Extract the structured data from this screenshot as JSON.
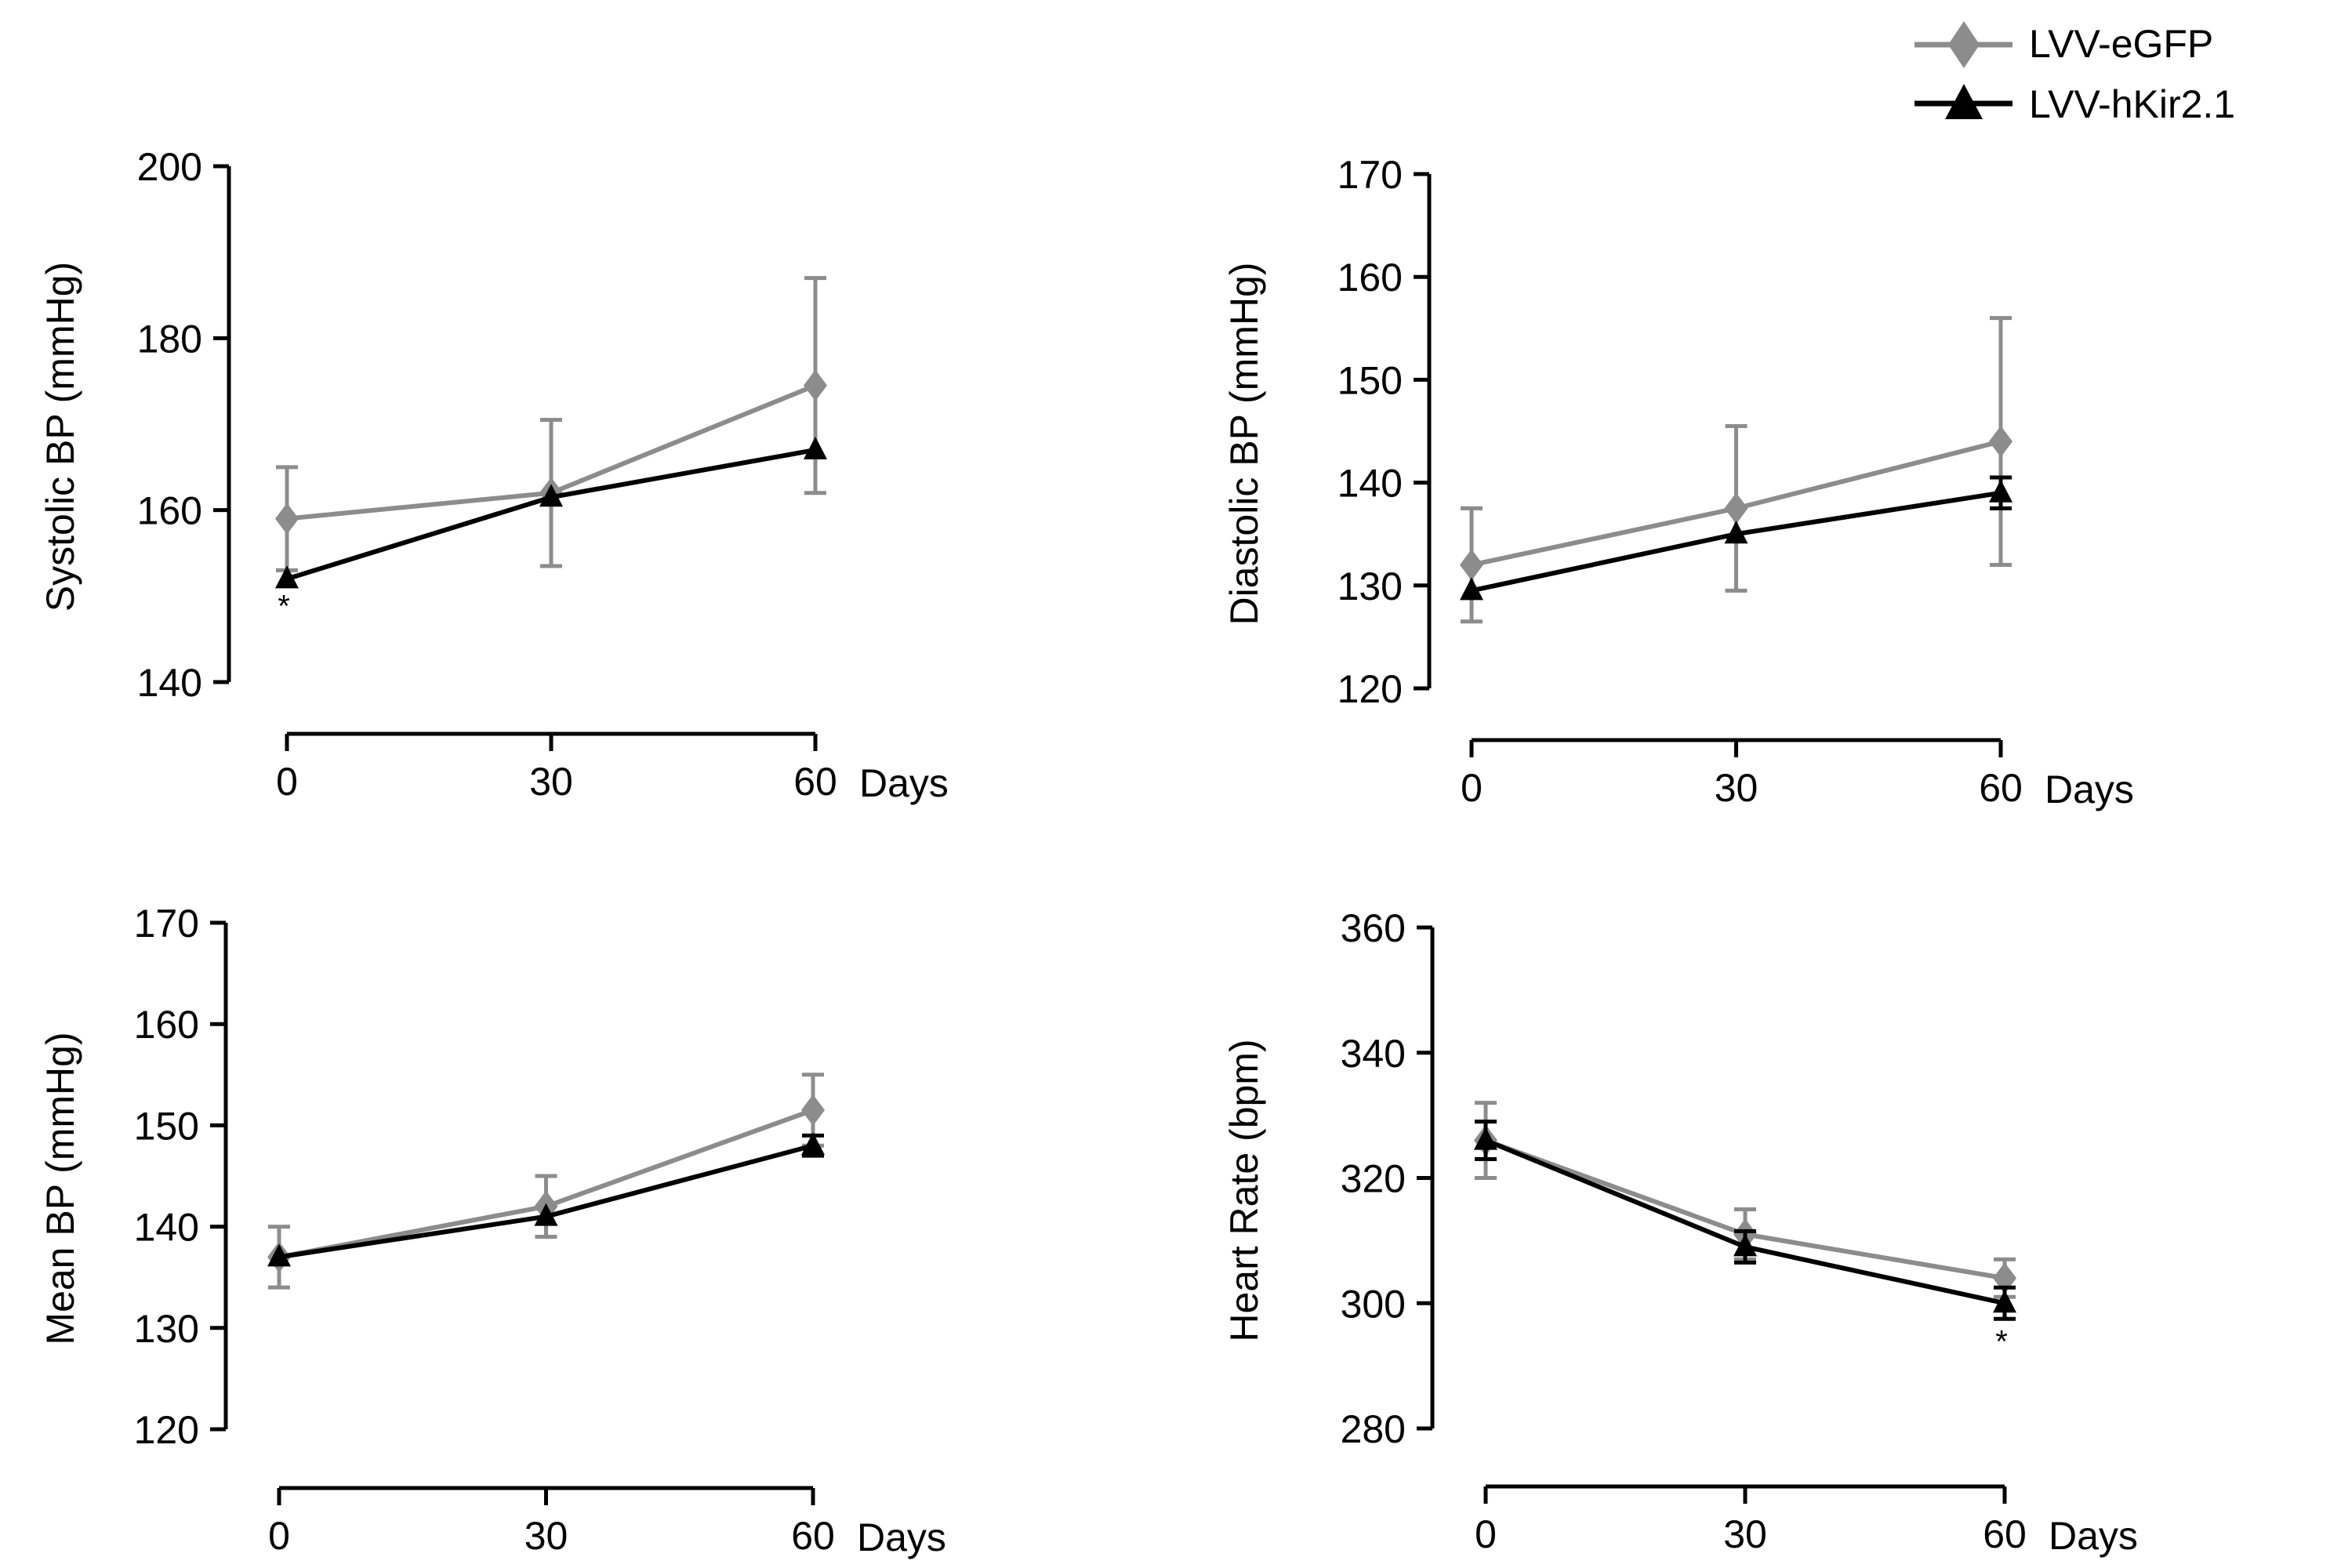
{
  "legend": {
    "items": [
      {
        "label": "LVV-eGFP",
        "color": "#8c8c8c",
        "marker": "diamond"
      },
      {
        "label": "LVV-hKir2.1",
        "color": "#000000",
        "marker": "triangle"
      }
    ]
  },
  "x_axis": {
    "categories": [
      "0",
      "30",
      "60"
    ],
    "x": [
      0,
      30,
      60
    ],
    "unit_label": "Days"
  },
  "chart_data": [
    {
      "type": "line",
      "title": "",
      "xlabel": "Days",
      "ylabel": "Systolic BP (mmHg)",
      "ylim": [
        140,
        200
      ],
      "yticks": [
        140,
        160,
        180,
        200
      ],
      "x": [
        0,
        30,
        60
      ],
      "series": [
        {
          "name": "LVV-eGFP",
          "values": [
            159,
            162,
            174.5
          ],
          "errors": [
            6,
            8.5,
            12.5
          ]
        },
        {
          "name": "LVV-hKir2.1",
          "values": [
            152,
            161.5,
            167
          ],
          "errors": [
            0,
            0,
            0
          ]
        }
      ],
      "annotations": [
        {
          "series": "LVV-hKir2.1",
          "x": 0,
          "text": "*"
        }
      ]
    },
    {
      "type": "line",
      "title": "",
      "xlabel": "Days",
      "ylabel": "Diastolic BP (mmHg)",
      "ylim": [
        120,
        170
      ],
      "yticks": [
        120,
        130,
        140,
        150,
        160,
        170
      ],
      "x": [
        0,
        30,
        60
      ],
      "series": [
        {
          "name": "LVV-eGFP",
          "values": [
            132,
            137.5,
            144
          ],
          "errors": [
            5.5,
            8,
            12
          ]
        },
        {
          "name": "LVV-hKir2.1",
          "values": [
            129.5,
            135,
            139
          ],
          "errors": [
            0,
            0,
            1.5
          ]
        }
      ],
      "annotations": []
    },
    {
      "type": "line",
      "title": "",
      "xlabel": "Days",
      "ylabel": "Mean BP (mmHg)",
      "ylim": [
        120,
        170
      ],
      "yticks": [
        120,
        130,
        140,
        150,
        160,
        170
      ],
      "x": [
        0,
        30,
        60
      ],
      "series": [
        {
          "name": "LVV-eGFP",
          "values": [
            137,
            142,
            151.5
          ],
          "errors": [
            3,
            3,
            3.5
          ]
        },
        {
          "name": "LVV-hKir2.1",
          "values": [
            137,
            141,
            148
          ],
          "errors": [
            0,
            0,
            1
          ]
        }
      ],
      "annotations": []
    },
    {
      "type": "line",
      "title": "",
      "xlabel": "Days",
      "ylabel": "Heart Rate (bpm)",
      "ylim": [
        280,
        360
      ],
      "yticks": [
        280,
        300,
        320,
        340,
        360
      ],
      "x": [
        0,
        30,
        60
      ],
      "series": [
        {
          "name": "LVV-eGFP",
          "values": [
            326,
            311,
            304
          ],
          "errors": [
            6,
            4,
            3
          ]
        },
        {
          "name": "LVV-hKir2.1",
          "values": [
            326,
            309,
            300
          ],
          "errors": [
            3,
            2.5,
            2.5
          ]
        }
      ],
      "annotations": [
        {
          "series": "LVV-hKir2.1",
          "x": 60,
          "text": "*"
        }
      ]
    }
  ]
}
